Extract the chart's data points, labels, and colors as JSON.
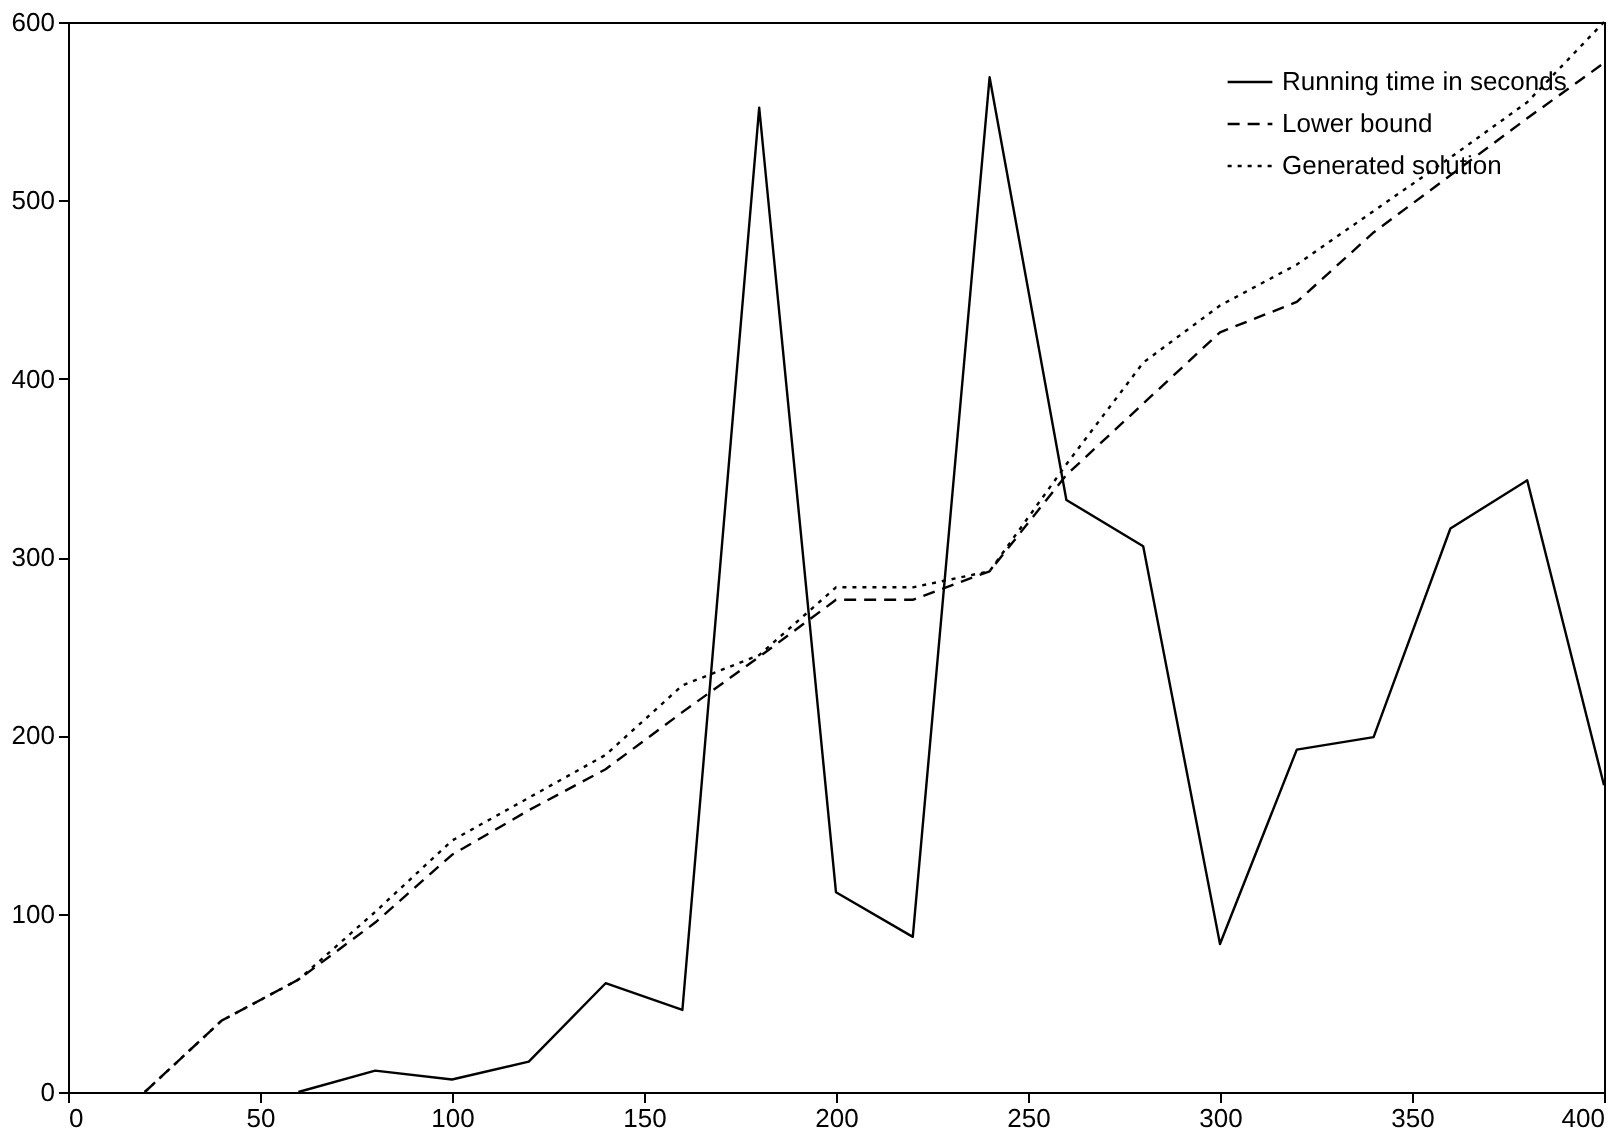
{
  "chart_data": {
    "type": "line",
    "xlim": [
      0,
      400
    ],
    "xticks": [
      0,
      50,
      100,
      150,
      200,
      250,
      300,
      350,
      400
    ],
    "ylim": [
      0,
      600
    ],
    "yticks": [
      0,
      100,
      200,
      300,
      400,
      500,
      600
    ],
    "grid": false,
    "legend": "top right",
    "marker": "none",
    "series": [
      {
        "name": "Running time in seconds",
        "color": "#000000",
        "line_style": "solid",
        "x": [
          60,
          80,
          100,
          120,
          140,
          160,
          180,
          200,
          220,
          240,
          260,
          280,
          300,
          320,
          340,
          360,
          380,
          400
        ],
        "values": [
          0,
          12,
          7,
          17,
          61,
          46,
          552,
          112,
          87,
          569,
          332,
          306,
          83,
          192,
          199,
          316,
          343,
          172
        ]
      },
      {
        "name": "Lower bound",
        "color": "#000000",
        "line_style": "dashed",
        "x": [
          20,
          40,
          60,
          80,
          100,
          120,
          140,
          160,
          180,
          200,
          220,
          240,
          260,
          280,
          300,
          320,
          340,
          360,
          380,
          400
        ],
        "values": [
          0,
          40,
          63,
          95,
          133,
          158,
          181,
          213,
          244,
          276,
          276,
          292,
          346,
          386,
          426,
          443,
          482,
          514,
          546,
          577
        ]
      },
      {
        "name": "Generated solution",
        "color": "#000000",
        "line_style": "dotted",
        "x": [
          20,
          40,
          60,
          80,
          100,
          120,
          140,
          160,
          180,
          200,
          220,
          240,
          260,
          280,
          300,
          320,
          340,
          360,
          380,
          400
        ],
        "values": [
          0,
          40,
          63,
          101,
          141,
          165,
          189,
          228,
          245,
          283,
          283,
          292,
          352,
          409,
          441,
          464,
          494,
          524,
          555,
          600
        ]
      }
    ]
  }
}
